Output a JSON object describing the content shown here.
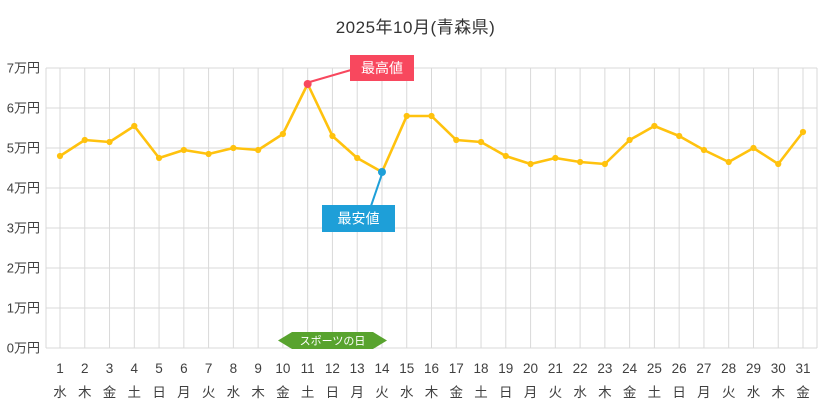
{
  "colors": {
    "line": "#FFC20E",
    "grid": "#d9d9d9",
    "axis_text": "#404040",
    "max": "#F8485E",
    "min": "#1E9FD8",
    "holiday": "#58A32E",
    "annotation_text": "#ffffff"
  },
  "annotations": {
    "max_label": "最高値",
    "max_day": 11,
    "min_label": "最安値",
    "min_day": 14,
    "holiday_label": "スポーツの日",
    "holiday_span_days": [
      10,
      14
    ]
  },
  "chart_data": {
    "type": "line",
    "title": "2025年10月(青森県)",
    "x": [
      1,
      2,
      3,
      4,
      5,
      6,
      7,
      8,
      9,
      10,
      11,
      12,
      13,
      14,
      15,
      16,
      17,
      18,
      19,
      20,
      21,
      22,
      23,
      24,
      25,
      26,
      27,
      28,
      29,
      30,
      31
    ],
    "x_weekdays": [
      "水",
      "木",
      "金",
      "土",
      "日",
      "月",
      "火",
      "水",
      "木",
      "金",
      "土",
      "日",
      "月",
      "火",
      "水",
      "木",
      "金",
      "土",
      "日",
      "月",
      "火",
      "水",
      "木",
      "金",
      "土",
      "日",
      "月",
      "火",
      "水",
      "木",
      "金"
    ],
    "values": [
      4.8,
      5.2,
      5.15,
      5.55,
      4.75,
      4.95,
      4.85,
      5.0,
      4.95,
      5.35,
      6.6,
      5.3,
      4.75,
      4.4,
      5.8,
      5.8,
      5.2,
      5.15,
      4.8,
      4.6,
      4.75,
      4.65,
      4.6,
      5.2,
      5.55,
      5.3,
      4.95,
      4.65,
      5.0,
      4.6,
      5.4
    ],
    "unit": "万円",
    "y_ticks": [
      "0万円",
      "1万円",
      "2万円",
      "3万円",
      "4万円",
      "5万円",
      "6万円",
      "7万円"
    ],
    "ylim": [
      0,
      7
    ],
    "grid": true,
    "legend": "none"
  }
}
